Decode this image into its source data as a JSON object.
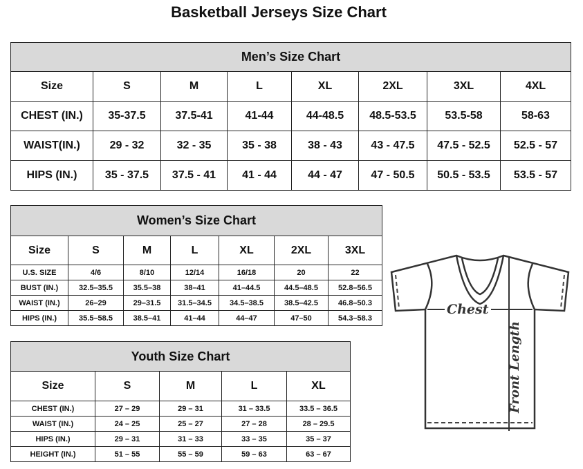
{
  "title": "Basketball Jerseys Size Chart",
  "men": {
    "caption": "Men’s Size Chart",
    "header": [
      "Size",
      "S",
      "M",
      "L",
      "XL",
      "2XL",
      "3XL",
      "4XL"
    ],
    "rows": [
      [
        "CHEST (IN.)",
        "35-37.5",
        "37.5-41",
        "41-44",
        "44-48.5",
        "48.5-53.5",
        "53.5-58",
        "58-63"
      ],
      [
        "WAIST(IN.)",
        "29 - 32",
        "32 - 35",
        "35 - 38",
        "38 - 43",
        "43 - 47.5",
        "47.5 - 52.5",
        "52.5 - 57"
      ],
      [
        "HIPS (IN.)",
        "35 - 37.5",
        "37.5 - 41",
        "41 - 44",
        "44 - 47",
        "47 - 50.5",
        "50.5 - 53.5",
        "53.5 - 57"
      ]
    ]
  },
  "women": {
    "caption": "Women’s Size Chart",
    "header": [
      "Size",
      "S",
      "M",
      "L",
      "XL",
      "2XL",
      "3XL"
    ],
    "rows": [
      [
        "U.S.  SIZE",
        "4/6",
        "8/10",
        "12/14",
        "16/18",
        "20",
        "22"
      ],
      [
        "BUST  (IN.)",
        "32.5–35.5",
        "35.5–38",
        "38–41",
        "41–44.5",
        "44.5–48.5",
        "52.8–56.5"
      ],
      [
        "WAIST  (IN.)",
        "26–29",
        "29–31.5",
        "31.5–34.5",
        "34.5–38.5",
        "38.5–42.5",
        "46.8–50.3"
      ],
      [
        "HIPS  (IN.)",
        "35.5–58.5",
        "38.5–41",
        "41–44",
        "44–47",
        "47–50",
        "54.3–58.3"
      ]
    ]
  },
  "youth": {
    "caption": "Youth Size Chart",
    "header": [
      "Size",
      "S",
      "M",
      "L",
      "XL"
    ],
    "rows": [
      [
        "CHEST  (IN.)",
        "27  –  29",
        "29  –  31",
        "31  –  33.5",
        "33.5  –  36.5"
      ],
      [
        "WAIST  (IN.)",
        "24  –  25",
        "25  –  27",
        "27  –  28",
        "28  –  29.5"
      ],
      [
        "HIPS  (IN.)",
        "29  –  31",
        "31  –  33",
        "33  –  35",
        "35  –  37"
      ],
      [
        "HEIGHT  (IN.)",
        "51  –  55",
        "55  –  59",
        "59  –  63",
        "63  –  67"
      ]
    ]
  },
  "diagram": {
    "chest_label": "Chest",
    "length_label": "Front Length"
  }
}
